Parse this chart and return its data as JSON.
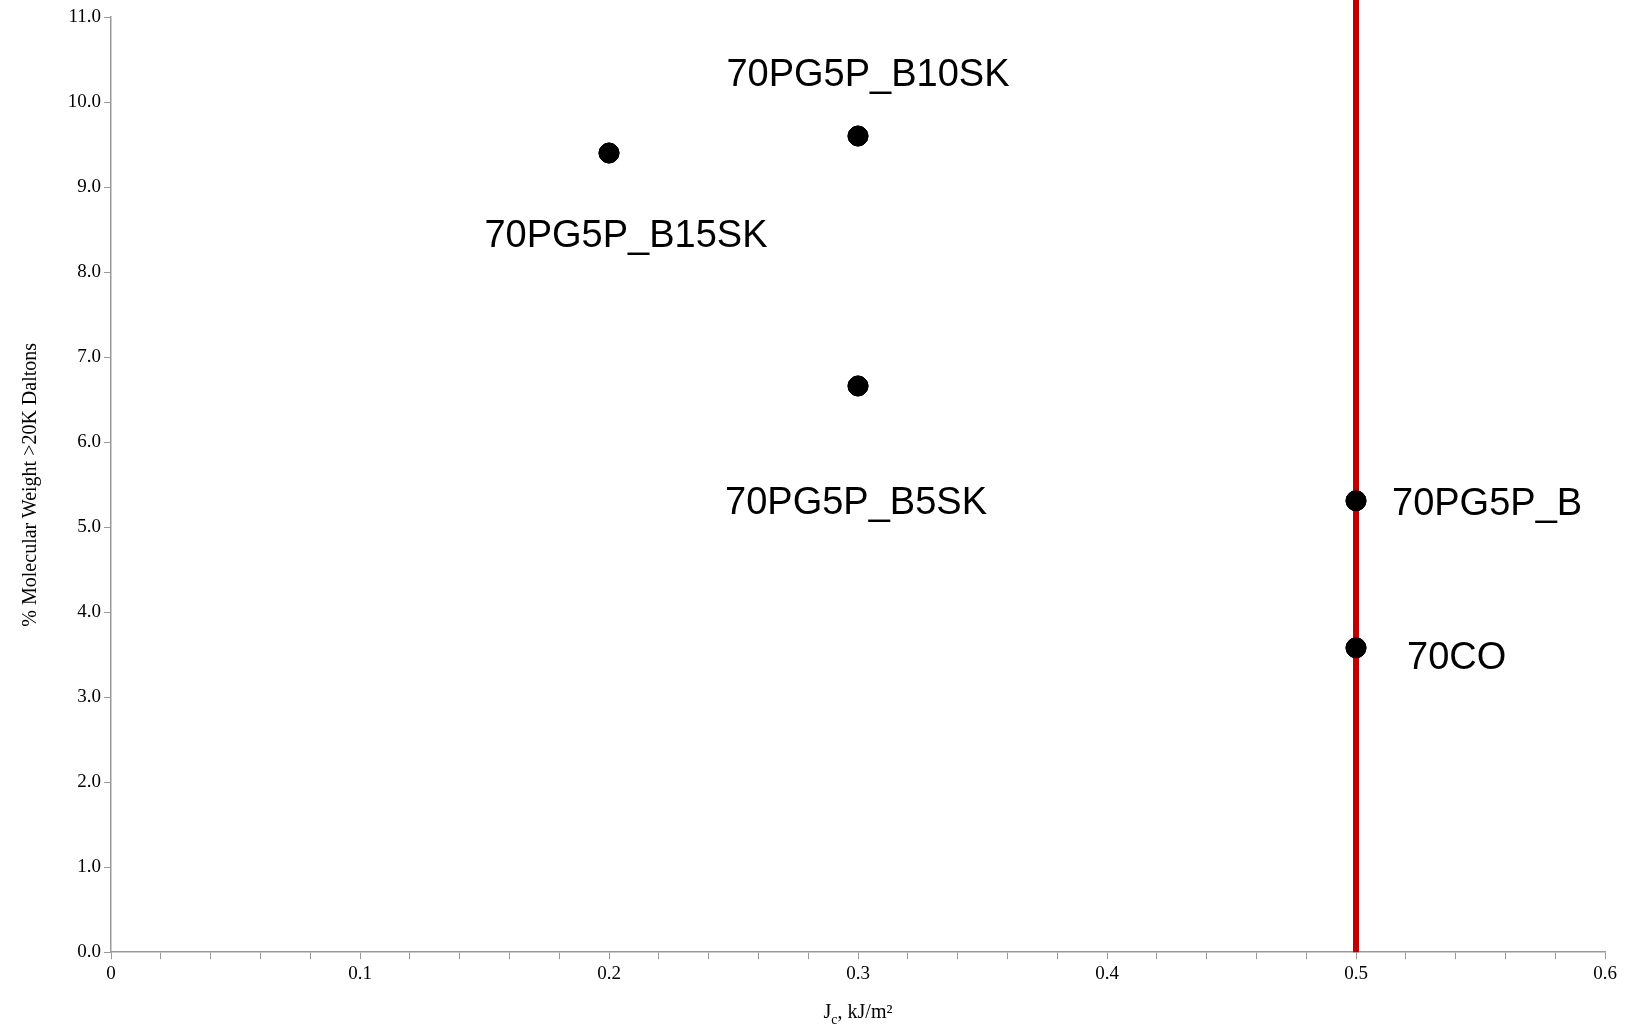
{
  "chart_data": {
    "type": "scatter",
    "xlabel": "J$_{c}$, kJ/m²",
    "ylabel": "% Molecular Weight >20K Daltons",
    "series": [
      {
        "color": "#000000",
        "x": [
          0.2,
          0.3,
          0.3,
          0.5,
          0.5
        ],
        "values": [
          9.4,
          9.6,
          6.66,
          5.31,
          3.58
        ]
      }
    ],
    "marker": "circle",
    "grid": false,
    "legend": false,
    "xlim": [
      0,
      0.6
    ],
    "xticks": [
      0,
      {
        "value": 0.02,
        "label": null
      },
      {
        "value": 0.04,
        "label": null
      },
      {
        "value": 0.06,
        "label": null
      },
      {
        "value": 0.08,
        "label": null
      },
      0.1,
      {
        "value": 0.12,
        "label": null
      },
      {
        "value": 0.14,
        "label": null
      },
      {
        "value": 0.16,
        "label": null
      },
      {
        "value": 0.18,
        "label": null
      },
      0.2,
      {
        "value": 0.22,
        "label": null
      },
      {
        "value": 0.24,
        "label": null
      },
      {
        "value": 0.26,
        "label": null
      },
      {
        "value": 0.28,
        "label": null
      },
      0.3,
      {
        "value": 0.32,
        "label": null
      },
      {
        "value": 0.34,
        "label": null
      },
      {
        "value": 0.36,
        "label": null
      },
      {
        "value": 0.38,
        "label": null
      },
      0.4,
      {
        "value": 0.42,
        "label": null
      },
      {
        "value": 0.44,
        "label": null
      },
      {
        "value": 0.46,
        "label": null
      },
      {
        "value": 0.48,
        "label": null
      },
      0.5,
      {
        "value": 0.52,
        "label": null
      },
      {
        "value": 0.54,
        "label": null
      },
      {
        "value": 0.56,
        "label": null
      },
      {
        "value": 0.58,
        "label": null
      },
      0.6
    ],
    "ylim": [
      0,
      11
    ],
    "yticks": [
      {
        "value": 0,
        "label": "0.0"
      },
      {
        "value": 1,
        "label": "1.0"
      },
      {
        "value": 2,
        "label": "2.0"
      },
      {
        "value": 3,
        "label": "3.0"
      },
      {
        "value": 4,
        "label": "4.0"
      },
      {
        "value": 5,
        "label": "5.0"
      },
      {
        "value": 6,
        "label": "6.0"
      },
      {
        "value": 7,
        "label": "7.0"
      },
      {
        "value": 8,
        "label": "8.0"
      },
      {
        "value": 9,
        "label": "9.0"
      },
      {
        "value": 10,
        "label": "10.0"
      },
      {
        "value": 11,
        "label": "11.0"
      }
    ],
    "ref_lines": [
      {
        "axis": "x",
        "value": 0.5,
        "color": "#c00000"
      }
    ],
    "annotations": [
      {
        "text": "70PG5P_B10SK",
        "x": 0.3,
        "y": 9.6
      },
      {
        "text": "70PG5P_B15SK",
        "x": 0.2,
        "y": 9.4
      },
      {
        "text": "70PG5P_B5SK",
        "x": 0.3,
        "y": 6.66
      },
      {
        "text": "70PG5P_B",
        "x": 0.5,
        "y": 5.31
      },
      {
        "text": "70CO",
        "x": 0.5,
        "y": 3.58
      }
    ]
  }
}
